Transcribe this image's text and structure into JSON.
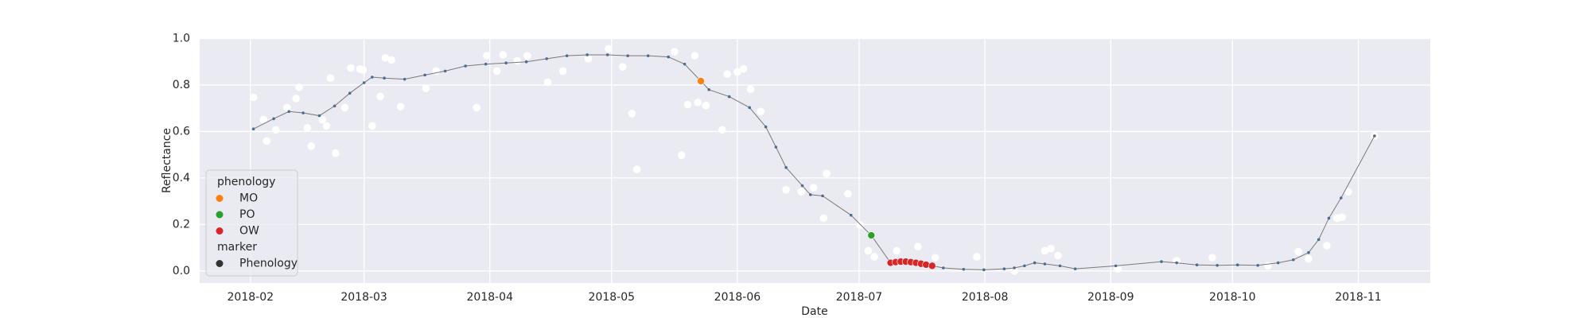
{
  "chart_data": {
    "type": "scatter",
    "x_label": "Date",
    "y_label": "Reflectance",
    "xlim": [
      19.5,
      322.75
    ],
    "ylim": [
      -0.052,
      1.0
    ],
    "xticks": [
      {
        "value": 32,
        "label": "2018-02"
      },
      {
        "value": 60,
        "label": "2018-03"
      },
      {
        "value": 91,
        "label": "2018-04"
      },
      {
        "value": 121,
        "label": "2018-05"
      },
      {
        "value": 152,
        "label": "2018-06"
      },
      {
        "value": 182,
        "label": "2018-07"
      },
      {
        "value": 213,
        "label": "2018-08"
      },
      {
        "value": 244,
        "label": "2018-09"
      },
      {
        "value": 274,
        "label": "2018-10"
      },
      {
        "value": 305,
        "label": "2018-11"
      }
    ],
    "yticks": [
      {
        "value": 0,
        "label": "0.0"
      },
      0.2,
      0.4,
      0.6,
      0.8,
      {
        "value": 1,
        "label": "1.0"
      }
    ],
    "grid": true,
    "background": "#eaeaf2",
    "series": [
      {
        "kind": "scatter",
        "color": "#ffffff",
        "x": [
          32.75,
          35.25,
          36,
          38.25,
          41,
          43.25,
          44,
          46,
          47,
          49.75,
          50.75,
          51.75,
          53,
          55.25,
          56.75,
          59,
          59.75,
          62,
          64,
          65.25,
          66.75,
          69,
          75.25,
          77.75,
          87.75,
          90.25,
          92.75,
          94.25,
          97.75,
          100.25,
          105.25,
          109,
          115.25,
          120.25,
          123.75,
          126,
          127.25,
          136.5,
          138.25,
          139.75,
          141.5,
          142.25,
          144.25,
          148.25,
          149.5,
          152,
          153.5,
          155.25,
          157.75,
          164,
          167.75,
          170.75,
          173.25,
          174,
          179.25,
          182.25,
          184.25,
          185.75,
          191.25,
          196.5,
          200.75,
          211,
          220.25,
          227.75,
          229.25,
          231,
          245.75,
          260.25,
          269,
          282.75,
          290.25,
          292.75,
          297.25,
          299.75,
          301,
          302.5,
          309
        ],
        "values": [
          0.747,
          0.651,
          0.559,
          0.607,
          0.703,
          0.742,
          0.79,
          0.616,
          0.537,
          0.651,
          0.624,
          0.83,
          0.507,
          0.703,
          0.873,
          0.869,
          0.865,
          0.624,
          0.751,
          0.917,
          0.908,
          0.707,
          0.786,
          0.86,
          0.703,
          0.926,
          0.86,
          0.93,
          0.904,
          0.926,
          0.812,
          0.86,
          0.913,
          0.956,
          0.878,
          0.677,
          0.437,
          0.943,
          0.498,
          0.716,
          0.926,
          0.725,
          0.712,
          0.607,
          0.847,
          0.856,
          0.869,
          0.782,
          0.686,
          0.349,
          0.341,
          0.358,
          0.227,
          0.419,
          0.332,
          0.197,
          0.087,
          0.061,
          0.087,
          0.105,
          0.057,
          0.061,
          0,
          0.087,
          0.096,
          0.066,
          0.009,
          0.044,
          0.057,
          0.022,
          0.083,
          0.052,
          0.109,
          0.227,
          0.231,
          0.341,
          0.581
        ]
      },
      {
        "kind": "line",
        "color": "#4c6d8f",
        "line_color": "#7a7a7a",
        "x": [
          32.75,
          37.75,
          41.5,
          45,
          49,
          52.75,
          56.5,
          60,
          62,
          65,
          70,
          75,
          80,
          85,
          90,
          95,
          100,
          105,
          110,
          115,
          120,
          125,
          130,
          135,
          139,
          143,
          145,
          150,
          155,
          159,
          161.5,
          164,
          168,
          170,
          173,
          180,
          185,
          189.75,
          191,
          192.25,
          193.5,
          194.75,
          196,
          197.25,
          198.5,
          200,
          202.75,
          207.75,
          212.75,
          217.75,
          220.25,
          222.75,
          225.25,
          227.75,
          231.5,
          235.25,
          245.25,
          256.5,
          260.25,
          265.25,
          270.25,
          275.25,
          280.25,
          285.25,
          289,
          292.75,
          295.25,
          297.75,
          300.75,
          309
        ],
        "values": [
          0.611,
          0.655,
          0.686,
          0.68,
          0.668,
          0.71,
          0.765,
          0.81,
          0.834,
          0.83,
          0.825,
          0.843,
          0.86,
          0.882,
          0.89,
          0.895,
          0.9,
          0.913,
          0.926,
          0.93,
          0.93,
          0.926,
          0.926,
          0.921,
          0.89,
          0.817,
          0.78,
          0.75,
          0.703,
          0.62,
          0.533,
          0.445,
          0.367,
          0.328,
          0.323,
          0.24,
          0.153,
          0.035,
          0.038,
          0.04,
          0.04,
          0.038,
          0.035,
          0.031,
          0.027,
          0.022,
          0.013,
          0.007,
          0.005,
          0.009,
          0.013,
          0.022,
          0.035,
          0.03,
          0.022,
          0.009,
          0.022,
          0.04,
          0.035,
          0.026,
          0.024,
          0.026,
          0.024,
          0.035,
          0.048,
          0.079,
          0.135,
          0.227,
          0.314,
          0.581
        ]
      },
      {
        "kind": "scatter",
        "name": "MO",
        "color": "#ff7f0e",
        "x": [
          143
        ],
        "values": [
          0.817
        ]
      },
      {
        "kind": "scatter",
        "name": "PO",
        "color": "#2ca02c",
        "x": [
          185
        ],
        "values": [
          0.153
        ]
      },
      {
        "kind": "scatter",
        "name": "OW",
        "color": "#d62728",
        "x": [
          189.75,
          191,
          192.25,
          193.5,
          194.75,
          196,
          197.25,
          198.5,
          200
        ],
        "values": [
          0.035,
          0.038,
          0.04,
          0.04,
          0.038,
          0.035,
          0.031,
          0.027,
          0.022
        ]
      }
    ],
    "legend": {
      "corner": "lower left",
      "title": "phenology",
      "marker_title": "marker",
      "marker_label": "Phenology",
      "marker_color": "#333333"
    }
  }
}
